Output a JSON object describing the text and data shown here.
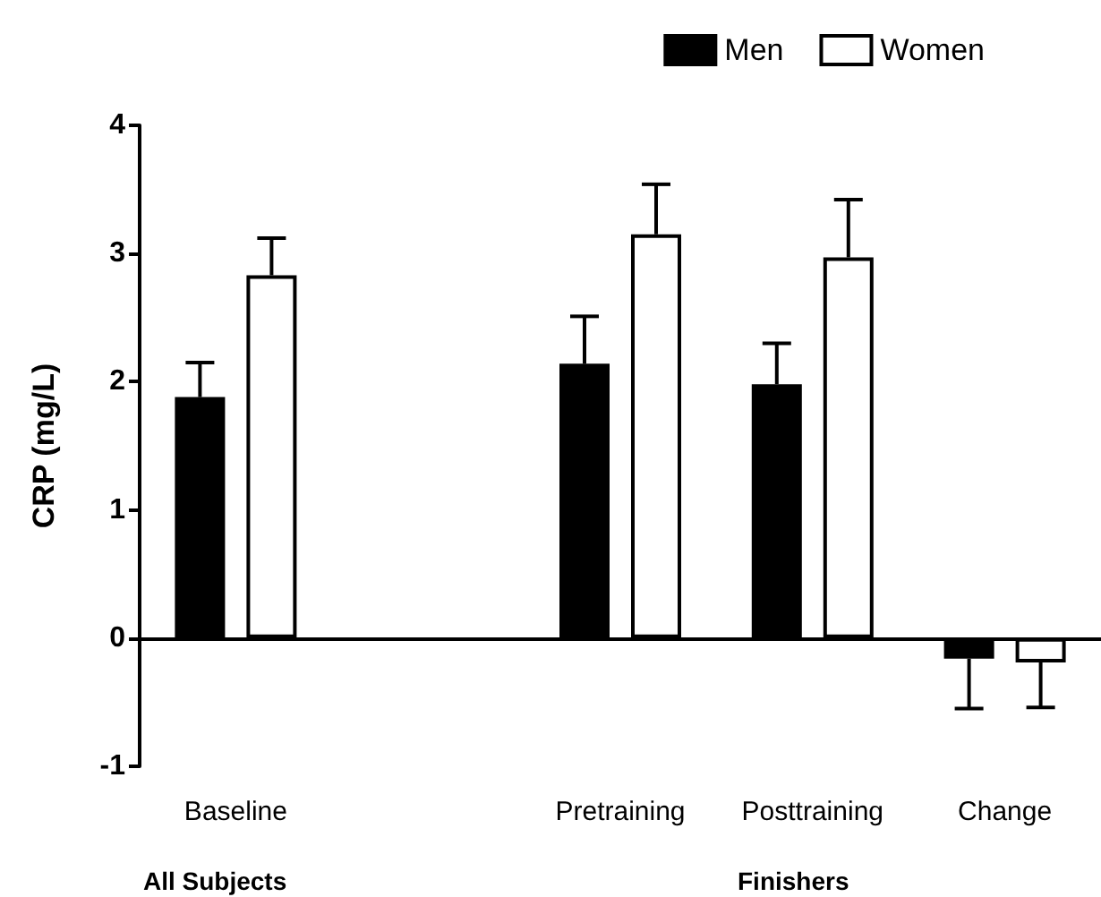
{
  "chart_data": {
    "type": "bar",
    "ylabel": "CRP (mg/L)",
    "categories": [
      "Baseline",
      null,
      "Pretraining",
      "Posttraining",
      "Change"
    ],
    "series": [
      {
        "name": "Men",
        "color": "#000000",
        "values": [
          1.88,
          null,
          2.14,
          1.98,
          -0.16
        ],
        "errors": [
          [
            1.88,
            2.15
          ],
          null,
          [
            2.14,
            2.51
          ],
          [
            1.98,
            2.3
          ],
          [
            -0.55,
            -0.16
          ]
        ]
      },
      {
        "name": "Women",
        "color": "#ffffff",
        "values": [
          2.83,
          null,
          3.15,
          2.97,
          -0.19
        ],
        "errors": [
          [
            2.83,
            3.12
          ],
          null,
          [
            3.15,
            3.54
          ],
          [
            2.97,
            3.42
          ],
          [
            -0.54,
            -0.19
          ]
        ]
      }
    ],
    "ylim": [
      -1,
      4
    ],
    "yticks": [
      -1,
      0,
      1,
      2,
      3,
      4
    ],
    "legend": "top right",
    "annotations": [
      "All Subjects",
      "Finishers"
    ]
  }
}
